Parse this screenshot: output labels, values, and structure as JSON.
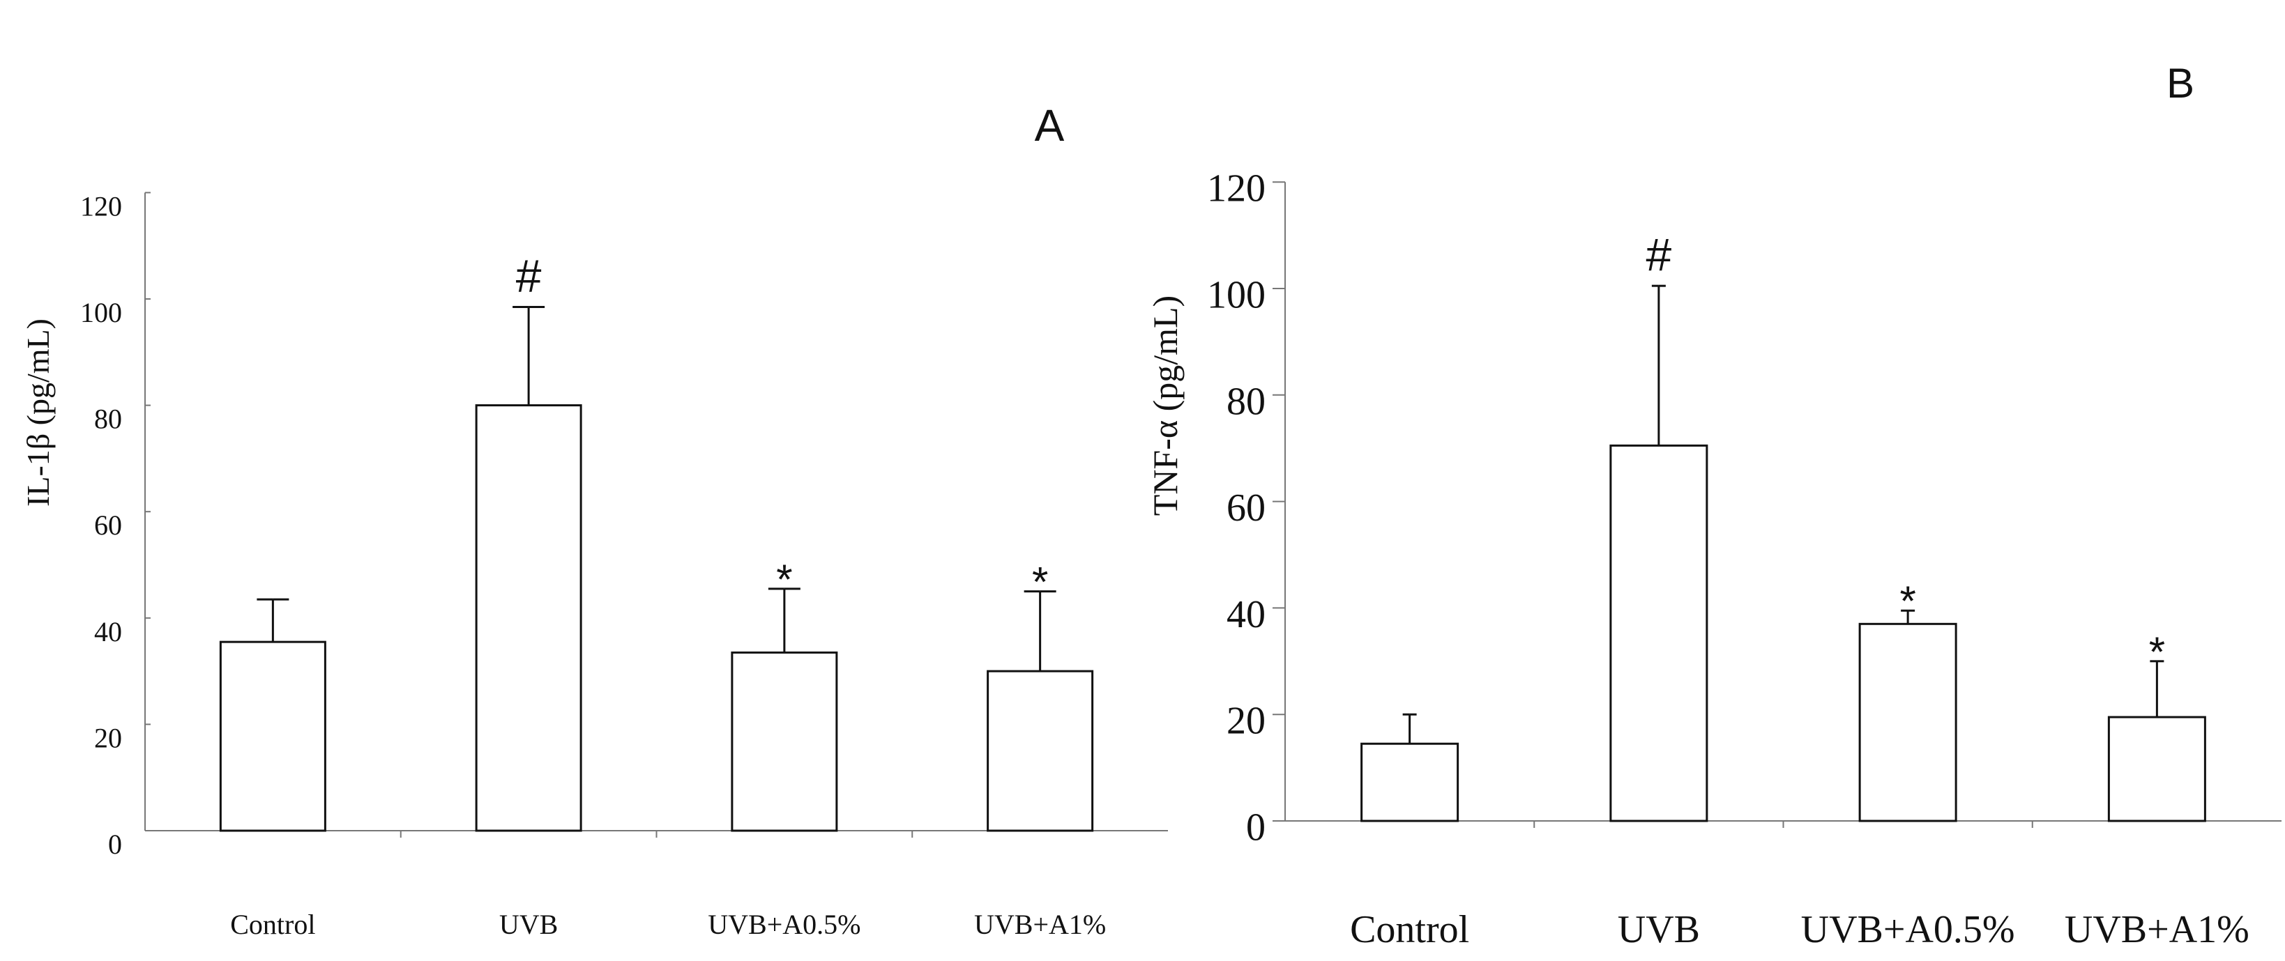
{
  "chart_data": [
    {
      "type": "bar",
      "panel_label": "A",
      "ylabel": "IL-1β (pg/mL)",
      "ylim": [
        0,
        120
      ],
      "yticks": [
        "0",
        "20",
        "40",
        "60",
        "80",
        "100",
        "120"
      ],
      "categories": [
        "Control",
        "UVB",
        "UVB+A0.5%",
        "UVB+A1%"
      ],
      "values": [
        35.5,
        80,
        33.5,
        30
      ],
      "errors": [
        8,
        18.5,
        12,
        15
      ],
      "annotations": [
        "",
        "#",
        "*",
        "*"
      ],
      "grid": false
    },
    {
      "type": "bar",
      "panel_label": "B",
      "ylabel": "TNF-α (pg/mL)",
      "ylim": [
        0,
        120
      ],
      "yticks": [
        "0",
        "20",
        "40",
        "60",
        "80",
        "100",
        "120"
      ],
      "categories": [
        "Control",
        "UVB",
        "UVB+A0.5%",
        "UVB+A1%"
      ],
      "values": [
        14.5,
        70.5,
        37,
        19.5
      ],
      "errors": [
        5.5,
        30,
        2.5,
        10.5
      ],
      "annotations": [
        "",
        "#",
        "*",
        "*"
      ],
      "grid": false
    }
  ]
}
